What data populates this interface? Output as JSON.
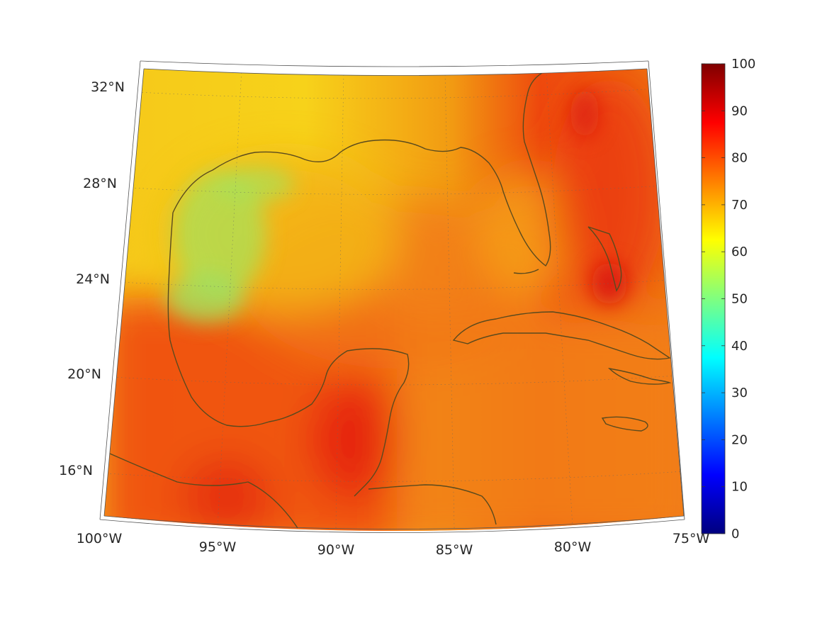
{
  "map": {
    "lat_labels": [
      "32°N",
      "28°N",
      "24°N",
      "20°N",
      "16°N"
    ],
    "lon_labels": [
      "100°W",
      "95°W",
      "90°W",
      "85°W",
      "80°W",
      "75°W"
    ],
    "extent": {
      "lon_min": -100,
      "lon_max": -75,
      "lat_min": 14,
      "lat_max": 33
    },
    "projection": "conic",
    "graticule": true,
    "coastline_color": "#5a4a1e"
  },
  "colorbar": {
    "colormap": "jet",
    "ticks": [
      "0",
      "10",
      "20",
      "30",
      "40",
      "50",
      "60",
      "70",
      "80",
      "90",
      "100"
    ],
    "range": [
      0,
      100
    ]
  }
}
